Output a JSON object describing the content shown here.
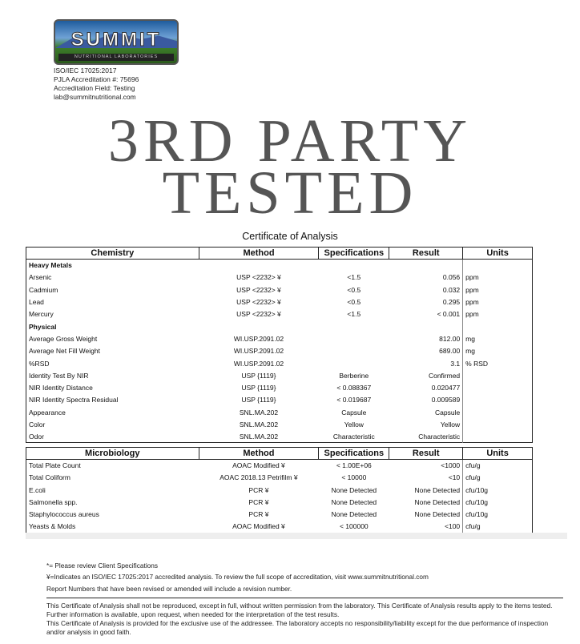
{
  "header": {
    "logo_text": "SUMMIT",
    "logo_sub": "NUTRITIONAL LABORATORIES",
    "info": [
      "ISO/IEC 17025:2017",
      "PJLA Accreditation #: 75696",
      "Accreditation Field: Testing",
      "lab@summitnutritional.com"
    ]
  },
  "banner": {
    "line1": "3RD PARTY",
    "line2": "TESTED"
  },
  "title": "Certificate of Analysis",
  "chemistry": {
    "headers": [
      "Chemistry",
      "Method",
      "Specifications",
      "Result",
      "Units"
    ],
    "rows": [
      {
        "section": "Heavy Metals"
      },
      {
        "name": "Arsenic",
        "method": "USP <2232> ¥",
        "spec": "<1.5",
        "result": "0.056",
        "units": "ppm"
      },
      {
        "name": "Cadmium",
        "method": "USP <2232> ¥",
        "spec": "<0.5",
        "result": "0.032",
        "units": "ppm"
      },
      {
        "name": "Lead",
        "method": "USP <2232> ¥",
        "spec": "<0.5",
        "result": "0.295",
        "units": "ppm"
      },
      {
        "name": "Mercury",
        "method": "USP <2232> ¥",
        "spec": "<1.5",
        "result": "< 0.001",
        "units": "ppm"
      },
      {
        "section": "Physical"
      },
      {
        "name": "Average Gross Weight",
        "method": "WI.USP.2091.02",
        "spec": "",
        "result": "812.00",
        "units": "mg"
      },
      {
        "name": "Average Net Fill Weight",
        "method": "WI.USP.2091.02",
        "spec": "",
        "result": "689.00",
        "units": "mg"
      },
      {
        "name": "%RSD",
        "method": "WI.USP.2091.02",
        "spec": "",
        "result": "3.1",
        "units": "% RSD"
      },
      {
        "name": "Identity Test By NIR",
        "method": "USP {1119}",
        "spec": "Berberine",
        "result": "Confirmed",
        "units": ""
      },
      {
        "name": "NIR Identity Distance",
        "method": "USP {1119}",
        "spec": "< 0.088367",
        "result": "0.020477",
        "units": ""
      },
      {
        "name": "NIR Identity Spectra Residual",
        "method": "USP {1119}",
        "spec": "< 0.019687",
        "result": "0.009589",
        "units": ""
      },
      {
        "name": "Appearance",
        "method": "SNL.MA.202",
        "spec": "Capsule",
        "result": "Capsule",
        "units": ""
      },
      {
        "name": "Color",
        "method": "SNL.MA.202",
        "spec": "Yellow",
        "result": "Yellow",
        "units": ""
      },
      {
        "name": "Odor",
        "method": "SNL.MA.202",
        "spec": "Characteristic",
        "result": "Characteristic",
        "units": ""
      }
    ]
  },
  "microbiology": {
    "headers": [
      "Microbiology",
      "Method",
      "Specifications",
      "Result",
      "Units"
    ],
    "rows": [
      {
        "name": "Total Plate Count",
        "method": "AOAC Modified ¥",
        "spec": "< 1.00E+06",
        "result": "<1000",
        "units": "cfu/g"
      },
      {
        "name": "Total Coliform",
        "method": "AOAC 2018.13 Petrifilm ¥",
        "spec": "< 10000",
        "result": "<10",
        "units": "cfu/g"
      },
      {
        "name": "E.coli",
        "method": "PCR ¥",
        "spec": "None Detected",
        "result": "None Detected",
        "units": "cfu/10g"
      },
      {
        "name": "Salmonella spp.",
        "method": "PCR ¥",
        "spec": "None Detected",
        "result": "None Detected",
        "units": "cfu/10g"
      },
      {
        "name": "Staphylococcus aureus",
        "method": "PCR ¥",
        "spec": "None Detected",
        "result": "None Detected",
        "units": "cfu/10g"
      },
      {
        "name": "Yeasts & Molds",
        "method": "AOAC Modified ¥",
        "spec": "< 100000",
        "result": "<100",
        "units": "cfu/g"
      }
    ]
  },
  "footnotes": [
    "*= Please review Client Specifications",
    "¥=Indicates an ISO/IEC 17025:2017 accredited analysis. To review the full scope of accreditation, visit www.summitnutritional.com",
    "Report Numbers that have been revised or amended will include a revision number."
  ],
  "disclaimer": [
    "This Certificate of Analysis shall not be reproduced, except in full, without written permission from the laboratory. This Certificate of Analysis results apply to the items tested. Further information is available, upon request, when needed for the interpretation of the test results.",
    "This Certificate of Analysis is provided for the exclusive use of the addressee. The laboratory accepts no responsibility/liability except for the due performance of inspection and/or analysis in good faith."
  ]
}
